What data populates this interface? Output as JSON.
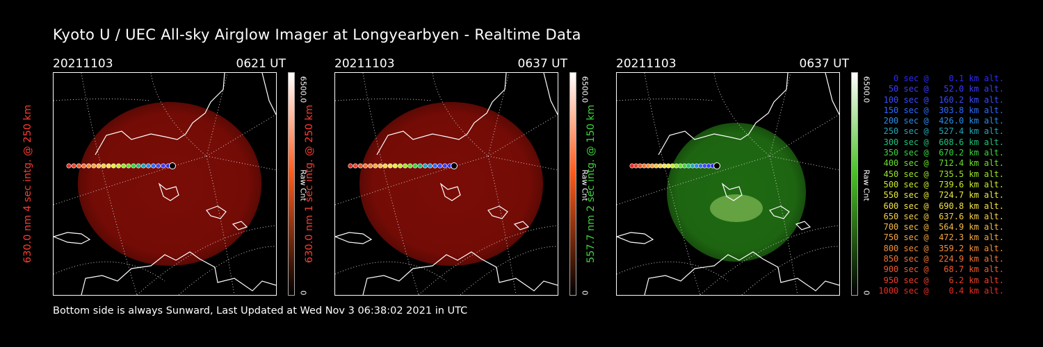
{
  "title": "Kyoto U / UEC All-sky Airglow Imager at Longyearbyen - Realtime Data",
  "footer": "Bottom side is always Sunward, Last Updated at Wed Nov  3 06:38:02 2021 in UTC",
  "panels": [
    {
      "date": "20211103",
      "time": "0621 UT",
      "ylabel": "630.0 nm 4 sec intg. @ 250 km",
      "label_color": "#ff3b2f",
      "colorbar_max": "6500.0",
      "colorbar_unit": "Raw Cnt",
      "colorbar_min": "0",
      "image_color": "#7a0c06",
      "colorbar_top_color": "#ffffff",
      "colorbar_mid_color": "#ff5a1a",
      "colorbar_bottom_color": "#000000"
    },
    {
      "date": "20211103",
      "time": "0637 UT",
      "ylabel": "630.0 nm 1 sec intg. @ 250 km",
      "label_color": "#ff3b2f",
      "colorbar_max": "6500.0",
      "colorbar_unit": "Raw Cnt",
      "colorbar_min": "0",
      "image_color": "#7a0c06",
      "colorbar_top_color": "#ffffff",
      "colorbar_mid_color": "#ff5a1a",
      "colorbar_bottom_color": "#000000"
    },
    {
      "date": "20211103",
      "time": "0637 UT",
      "ylabel": "557.7 nm 2 sec intg. @ 150 km",
      "label_color": "#3cd43c",
      "colorbar_max": "6500.0",
      "colorbar_unit": "Raw Cnt",
      "colorbar_min": "0",
      "image_color": "#1f6a12",
      "colorbar_top_color": "#ffffff",
      "colorbar_mid_color": "#4cbf2a",
      "colorbar_bottom_color": "#000000"
    }
  ],
  "legend": [
    {
      "text": "   0 sec @    0.1 km alt.",
      "color": "#2a2aff"
    },
    {
      "text": "  50 sec @   52.0 km alt.",
      "color": "#3b3bff"
    },
    {
      "text": " 100 sec @  160.2 km alt.",
      "color": "#3a4cff"
    },
    {
      "text": " 150 sec @  303.8 km alt.",
      "color": "#2c6bff"
    },
    {
      "text": " 200 sec @  426.0 km alt.",
      "color": "#2b8ce8"
    },
    {
      "text": " 250 sec @  527.4 km alt.",
      "color": "#22a6b8"
    },
    {
      "text": " 300 sec @  608.6 km alt.",
      "color": "#20c07a"
    },
    {
      "text": " 350 sec @  670.2 km alt.",
      "color": "#3ad43c"
    },
    {
      "text": " 400 sec @  712.4 km alt.",
      "color": "#6ae02a"
    },
    {
      "text": " 450 sec @  735.5 km alt.",
      "color": "#9ae52a"
    },
    {
      "text": " 500 sec @  739.6 km alt.",
      "color": "#c6ea2e"
    },
    {
      "text": " 550 sec @  724.7 km alt.",
      "color": "#e8ec3a"
    },
    {
      "text": " 600 sec @  690.8 km alt.",
      "color": "#f4e24a"
    },
    {
      "text": " 650 sec @  637.6 km alt.",
      "color": "#f6cf48"
    },
    {
      "text": " 700 sec @  564.9 km alt.",
      "color": "#f7bc44"
    },
    {
      "text": " 750 sec @  472.3 km alt.",
      "color": "#f6a63f"
    },
    {
      "text": " 800 sec @  359.2 km alt.",
      "color": "#f48e3a"
    },
    {
      "text": " 850 sec @  224.9 km alt.",
      "color": "#f27434"
    },
    {
      "text": " 900 sec @   68.7 km alt.",
      "color": "#ef5a2e"
    },
    {
      "text": " 950 sec @    6.2 km alt.",
      "color": "#ec4028"
    },
    {
      "text": "1000 sec @    0.4 km alt.",
      "color": "#e82c22"
    }
  ]
}
